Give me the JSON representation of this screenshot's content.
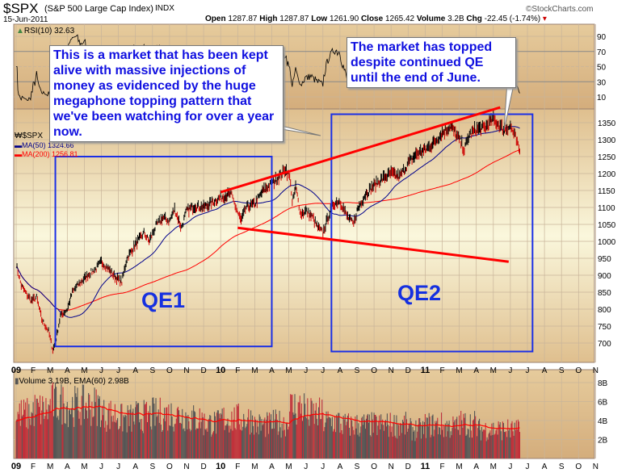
{
  "header": {
    "symbol": "$SPX",
    "name": "(S&P 500 Large Cap Index)",
    "exchange": "INDX",
    "date": "15-Jun-2011",
    "watermark": "©StockCharts.com",
    "open_label": "Open",
    "open": "1287.87",
    "high_label": "High",
    "high": "1287.87",
    "low_label": "Low",
    "low": "1261.90",
    "close_label": "Close",
    "close": "1265.42",
    "volume_label": "Volume",
    "volume": "3.2B",
    "chg_label": "Chg",
    "chg": "-22.45 (-1.74%)"
  },
  "legend": {
    "rsi": "RSI(10) 32.63",
    "price": "$SPX",
    "ma50": "MA(50) 1324.66",
    "ma200": "MA(200) 1256.81",
    "volume": "Volume 3.19B, EMA(60) 2.98B"
  },
  "colors": {
    "ma50": "#00008b",
    "ma200": "#ff0000",
    "up": "#000000",
    "down": "#cc0000",
    "annotation": "#1010e0",
    "trendline": "#ff0000"
  },
  "annotations": {
    "callout1": "This is a market that has been kept alive with massive injections of money as evidenced by the huge megaphone topping pattern that we've been watching for over a year now.",
    "callout2": "The market has topped despite continued QE until the end of June.",
    "qe1": "QE1",
    "qe2": "QE2"
  },
  "chart_data": [
    {
      "type": "line",
      "title": "RSI(10)",
      "ylim": [
        0,
        100
      ],
      "yticks": [
        90,
        70,
        50,
        30,
        10
      ]
    },
    {
      "type": "line",
      "title": "$SPX (S&P 500 Large Cap Index)",
      "ylim": [
        650,
        1380
      ],
      "yticks": [
        1350,
        1300,
        1250,
        1200,
        1150,
        1100,
        1050,
        1000,
        950,
        900,
        850,
        800,
        750,
        700
      ],
      "x_unit": "months since Jan 2009",
      "xticks": [
        "09",
        "F",
        "M",
        "A",
        "M",
        "J",
        "J",
        "A",
        "S",
        "O",
        "N",
        "D",
        "10",
        "F",
        "M",
        "A",
        "M",
        "J",
        "J",
        "A",
        "S",
        "O",
        "N",
        "D",
        "11",
        "F",
        "M",
        "A",
        "M",
        "J",
        "J",
        "A",
        "S",
        "O",
        "N"
      ],
      "series": [
        {
          "name": "$SPX close",
          "points": [
            [
              0,
              931
            ],
            [
              0.3,
              870
            ],
            [
              0.6,
              845
            ],
            [
              0.9,
              825
            ],
            [
              1.2,
              835
            ],
            [
              1.5,
              770
            ],
            [
              1.9,
              735
            ],
            [
              2.15,
              680
            ],
            [
              2.3,
              700
            ],
            [
              2.6,
              780
            ],
            [
              3.0,
              800
            ],
            [
              3.3,
              850
            ],
            [
              3.6,
              870
            ],
            [
              4.0,
              890
            ],
            [
              4.3,
              905
            ],
            [
              4.7,
              920
            ],
            [
              5.0,
              940
            ],
            [
              5.4,
              920
            ],
            [
              5.8,
              895
            ],
            [
              6.2,
              880
            ],
            [
              6.5,
              950
            ],
            [
              7.0,
              990
            ],
            [
              7.5,
              1025
            ],
            [
              7.8,
              1000
            ],
            [
              8.2,
              1045
            ],
            [
              8.6,
              1070
            ],
            [
              9.0,
              1060
            ],
            [
              9.3,
              1095
            ],
            [
              9.7,
              1040
            ],
            [
              10.0,
              1090
            ],
            [
              10.5,
              1105
            ],
            [
              11.0,
              1100
            ],
            [
              11.5,
              1115
            ],
            [
              12.0,
              1130
            ],
            [
              12.6,
              1140
            ],
            [
              13.0,
              1085
            ],
            [
              13.2,
              1060
            ],
            [
              13.5,
              1100
            ],
            [
              14.0,
              1110
            ],
            [
              14.5,
              1150
            ],
            [
              15.0,
              1170
            ],
            [
              15.5,
              1195
            ],
            [
              15.8,
              1215
            ],
            [
              16.1,
              1180
            ],
            [
              16.2,
              1110
            ],
            [
              16.4,
              1160
            ],
            [
              16.7,
              1080
            ],
            [
              17.0,
              1090
            ],
            [
              17.4,
              1070
            ],
            [
              17.7,
              1040
            ],
            [
              18.0,
              1025
            ],
            [
              18.3,
              1070
            ],
            [
              18.6,
              1110
            ],
            [
              19.0,
              1120
            ],
            [
              19.4,
              1075
            ],
            [
              19.8,
              1050
            ],
            [
              20.0,
              1090
            ],
            [
              20.5,
              1140
            ],
            [
              21.0,
              1165
            ],
            [
              21.5,
              1185
            ],
            [
              22.0,
              1200
            ],
            [
              22.5,
              1190
            ],
            [
              23.0,
              1230
            ],
            [
              23.5,
              1258
            ],
            [
              24.0,
              1270
            ],
            [
              24.5,
              1290
            ],
            [
              25.0,
              1320
            ],
            [
              25.5,
              1340
            ],
            [
              26.0,
              1300
            ],
            [
              26.3,
              1270
            ],
            [
              26.6,
              1315
            ],
            [
              27.0,
              1330
            ],
            [
              27.5,
              1335
            ],
            [
              28.0,
              1360
            ],
            [
              28.3,
              1345
            ],
            [
              28.6,
              1330
            ],
            [
              29.0,
              1340
            ],
            [
              29.3,
              1305
            ],
            [
              29.5,
              1270
            ],
            [
              29.55,
              1265
            ]
          ]
        },
        {
          "name": "MA(50)",
          "last": 1324.66
        },
        {
          "name": "MA(200)",
          "last": 1256.81
        }
      ],
      "trendlines": [
        {
          "name": "upper",
          "from": [
            12,
            1145
          ],
          "to": [
            28.4,
            1395
          ]
        },
        {
          "name": "lower",
          "from": [
            13,
            1040
          ],
          "to": [
            28.9,
            940
          ]
        }
      ],
      "boxes": [
        {
          "name": "QE1",
          "x": [
            2.3,
            15
          ],
          "y": [
            690,
            1250
          ]
        },
        {
          "name": "QE2",
          "x": [
            18.5,
            30.3
          ],
          "y": [
            675,
            1375
          ]
        }
      ]
    },
    {
      "type": "bar",
      "title": "Volume",
      "ylim": [
        0,
        9
      ],
      "yticks": [
        "8B",
        "6B",
        "4B",
        "2B"
      ],
      "unit": "billions",
      "monthly_avg_volume": [
        5,
        5.5,
        6.3,
        6,
        6,
        5,
        4.5,
        4.8,
        5,
        5,
        4.5,
        4,
        4.5,
        4.5,
        3.8,
        4,
        5.8,
        5,
        4.2,
        3.8,
        3.8,
        3.8,
        3.8,
        3.3,
        3.8,
        3.6,
        4,
        3.3,
        3.3,
        3.2
      ]
    }
  ]
}
